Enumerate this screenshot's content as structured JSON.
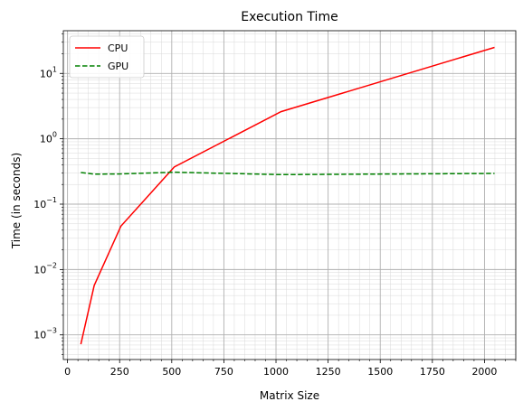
{
  "chart_data": {
    "type": "line",
    "title": "Execution Time",
    "xlabel": "Matrix Size",
    "ylabel": "Time (in seconds)",
    "xlim": [
      -20,
      2150
    ],
    "ylim": [
      0.00042,
      45
    ],
    "yscale": "log",
    "grid": true,
    "legend_position": "top-left",
    "x_ticks": [
      0,
      250,
      500,
      750,
      1000,
      1250,
      1500,
      1750,
      2000
    ],
    "x_tick_labels": [
      "0",
      "250",
      "500",
      "750",
      "1000",
      "1250",
      "1500",
      "1750",
      "2000"
    ],
    "y_ticks": [
      0.001,
      0.01,
      0.1,
      1,
      10
    ],
    "y_tick_labels": [
      {
        "base": "10",
        "exp": "−3"
      },
      {
        "base": "10",
        "exp": "−2"
      },
      {
        "base": "10",
        "exp": "−1"
      },
      {
        "base": "10",
        "exp": "0"
      },
      {
        "base": "10",
        "exp": "1"
      }
    ],
    "series": [
      {
        "name": "CPU",
        "color": "#ff0000",
        "dash": "solid",
        "x": [
          64,
          128,
          256,
          512,
          1024,
          2048
        ],
        "y": [
          0.00072,
          0.0057,
          0.046,
          0.37,
          2.6,
          25
        ]
      },
      {
        "name": "GPU",
        "color": "#008000",
        "dash": "dashed",
        "x": [
          64,
          128,
          256,
          512,
          1024,
          2048
        ],
        "y": [
          0.305,
          0.288,
          0.29,
          0.308,
          0.283,
          0.295
        ]
      }
    ]
  }
}
